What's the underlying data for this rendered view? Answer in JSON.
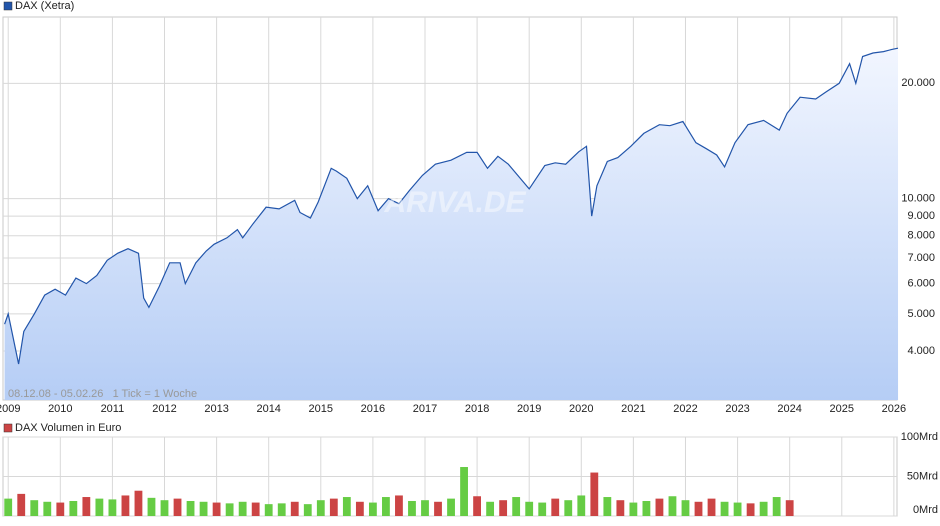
{
  "chart_data": [
    {
      "type": "line",
      "title": "DAX (Xetra)",
      "color": "#2255aa",
      "log_scale": true,
      "grid": true,
      "annotation": "08.12.08 - 05.02.26   1 Tick = 1 Woche",
      "watermark": "ARIVA.DE",
      "xlim": [
        2008.9,
        2026.06
      ],
      "ylim": [
        2980,
        29800
      ],
      "xticks": [
        2009,
        2010,
        2011,
        2012,
        2013,
        2014,
        2015,
        2016,
        2017,
        2018,
        2019,
        2020,
        2021,
        2022,
        2023,
        2024,
        2025,
        2026
      ],
      "yticks": [
        {
          "value": 4000,
          "label": "4.000"
        },
        {
          "value": 5000,
          "label": "5.000"
        },
        {
          "value": 6000,
          "label": "6.000"
        },
        {
          "value": 7000,
          "label": "7.000"
        },
        {
          "value": 8000,
          "label": "8.000"
        },
        {
          "value": 9000,
          "label": "9.000"
        },
        {
          "value": 10000,
          "label": "10.000"
        },
        {
          "value": 20000,
          "label": "20.000"
        }
      ],
      "x": [
        2008.93,
        2009.0,
        2009.2,
        2009.3,
        2009.5,
        2009.7,
        2009.9,
        2010.1,
        2010.3,
        2010.5,
        2010.7,
        2010.9,
        2011.1,
        2011.3,
        2011.5,
        2011.6,
        2011.7,
        2011.9,
        2012.1,
        2012.3,
        2012.4,
        2012.6,
        2012.8,
        2012.95,
        2013.2,
        2013.4,
        2013.5,
        2013.7,
        2013.95,
        2014.2,
        2014.5,
        2014.6,
        2014.8,
        2014.95,
        2015.2,
        2015.3,
        2015.5,
        2015.7,
        2015.9,
        2016.1,
        2016.3,
        2016.5,
        2016.7,
        2016.95,
        2017.2,
        2017.5,
        2017.8,
        2018.0,
        2018.2,
        2018.4,
        2018.6,
        2018.9,
        2019.0,
        2019.3,
        2019.5,
        2019.7,
        2019.95,
        2020.1,
        2020.2,
        2020.3,
        2020.5,
        2020.7,
        2020.95,
        2021.2,
        2021.5,
        2021.7,
        2021.95,
        2022.2,
        2022.4,
        2022.6,
        2022.75,
        2022.95,
        2023.2,
        2023.5,
        2023.8,
        2023.95,
        2024.2,
        2024.5,
        2024.7,
        2024.95,
        2025.15,
        2025.27,
        2025.4,
        2025.6,
        2025.8,
        2025.95,
        2026.08
      ],
      "values": [
        4700,
        5000,
        3700,
        4500,
        5000,
        5600,
        5800,
        5600,
        6200,
        6000,
        6300,
        6900,
        7200,
        7400,
        7200,
        5500,
        5200,
        5900,
        6800,
        6800,
        6000,
        6800,
        7300,
        7600,
        7900,
        8300,
        7900,
        8600,
        9500,
        9400,
        9900,
        9200,
        8900,
        9800,
        12000,
        11800,
        11300,
        10000,
        10800,
        9300,
        10000,
        9700,
        10500,
        11500,
        12300,
        12600,
        13200,
        13200,
        12000,
        12900,
        12300,
        11000,
        10600,
        12200,
        12400,
        12300,
        13250,
        13700,
        9000,
        10800,
        12500,
        12800,
        13700,
        14800,
        15600,
        15500,
        15900,
        14000,
        13500,
        13000,
        12100,
        14000,
        15600,
        16000,
        15100,
        16700,
        18400,
        18200,
        19000,
        20000,
        22500,
        20000,
        23500,
        24000,
        24200,
        24500,
        24700
      ]
    },
    {
      "type": "bar",
      "title": "DAX Volumen in Euro",
      "color": "#cc4444",
      "xlim": [
        2008.9,
        2026.06
      ],
      "ylim": [
        0,
        100
      ],
      "yticks": [
        {
          "value": 0,
          "label": "0Mrd"
        },
        {
          "value": 50,
          "label": "50Mrd"
        },
        {
          "value": 100,
          "label": "100Mrd"
        }
      ],
      "x": [
        2009.0,
        2009.25,
        2009.5,
        2009.75,
        2010.0,
        2010.25,
        2010.5,
        2010.75,
        2011.0,
        2011.25,
        2011.5,
        2011.75,
        2012.0,
        2012.25,
        2012.5,
        2012.75,
        2013.0,
        2013.25,
        2013.5,
        2013.75,
        2014.0,
        2014.25,
        2014.5,
        2014.75,
        2015.0,
        2015.25,
        2015.5,
        2015.75,
        2016.0,
        2016.25,
        2016.5,
        2016.75,
        2017.0,
        2017.25,
        2017.5,
        2017.75,
        2018.0,
        2018.25,
        2018.5,
        2018.75,
        2019.0,
        2019.25,
        2019.5,
        2019.75,
        2020.0,
        2020.25,
        2020.5,
        2020.75,
        2021.0,
        2021.25,
        2021.5,
        2021.75,
        2022.0,
        2022.25,
        2022.5,
        2022.75,
        2023.0,
        2023.25,
        2023.5,
        2023.75,
        2024.0
      ],
      "values": [
        22,
        28,
        20,
        18,
        17,
        19,
        24,
        22,
        21,
        26,
        32,
        23,
        20,
        22,
        19,
        18,
        17,
        16,
        18,
        17,
        15,
        16,
        18,
        15,
        20,
        22,
        24,
        18,
        17,
        24,
        26,
        19,
        20,
        18,
        22,
        62,
        25,
        18,
        20,
        24,
        18,
        17,
        22,
        20,
        26,
        55,
        24,
        20,
        17,
        19,
        22,
        25,
        20,
        18,
        22,
        18,
        17,
        16,
        18,
        24,
        20
      ],
      "colors": [
        "#66cc44",
        "#cc4444",
        "#66cc44",
        "#66cc44",
        "#cc4444",
        "#66cc44",
        "#cc4444",
        "#66cc44",
        "#66cc44",
        "#cc4444",
        "#cc4444",
        "#66cc44",
        "#66cc44",
        "#cc4444",
        "#66cc44",
        "#66cc44",
        "#cc4444",
        "#66cc44",
        "#66cc44",
        "#cc4444",
        "#66cc44",
        "#66cc44",
        "#cc4444",
        "#66cc44",
        "#66cc44",
        "#cc4444",
        "#66cc44",
        "#cc4444",
        "#66cc44",
        "#66cc44",
        "#cc4444",
        "#66cc44",
        "#66cc44",
        "#cc4444",
        "#66cc44",
        "#66cc44",
        "#cc4444",
        "#66cc44",
        "#cc4444",
        "#66cc44",
        "#66cc44",
        "#66cc44",
        "#cc4444",
        "#66cc44",
        "#66cc44",
        "#cc4444",
        "#66cc44",
        "#cc4444",
        "#66cc44",
        "#66cc44",
        "#cc4444",
        "#66cc44",
        "#66cc44",
        "#cc4444",
        "#cc4444",
        "#66cc44",
        "#66cc44",
        "#cc4444",
        "#66cc44",
        "#66cc44",
        "#cc4444"
      ]
    }
  ]
}
